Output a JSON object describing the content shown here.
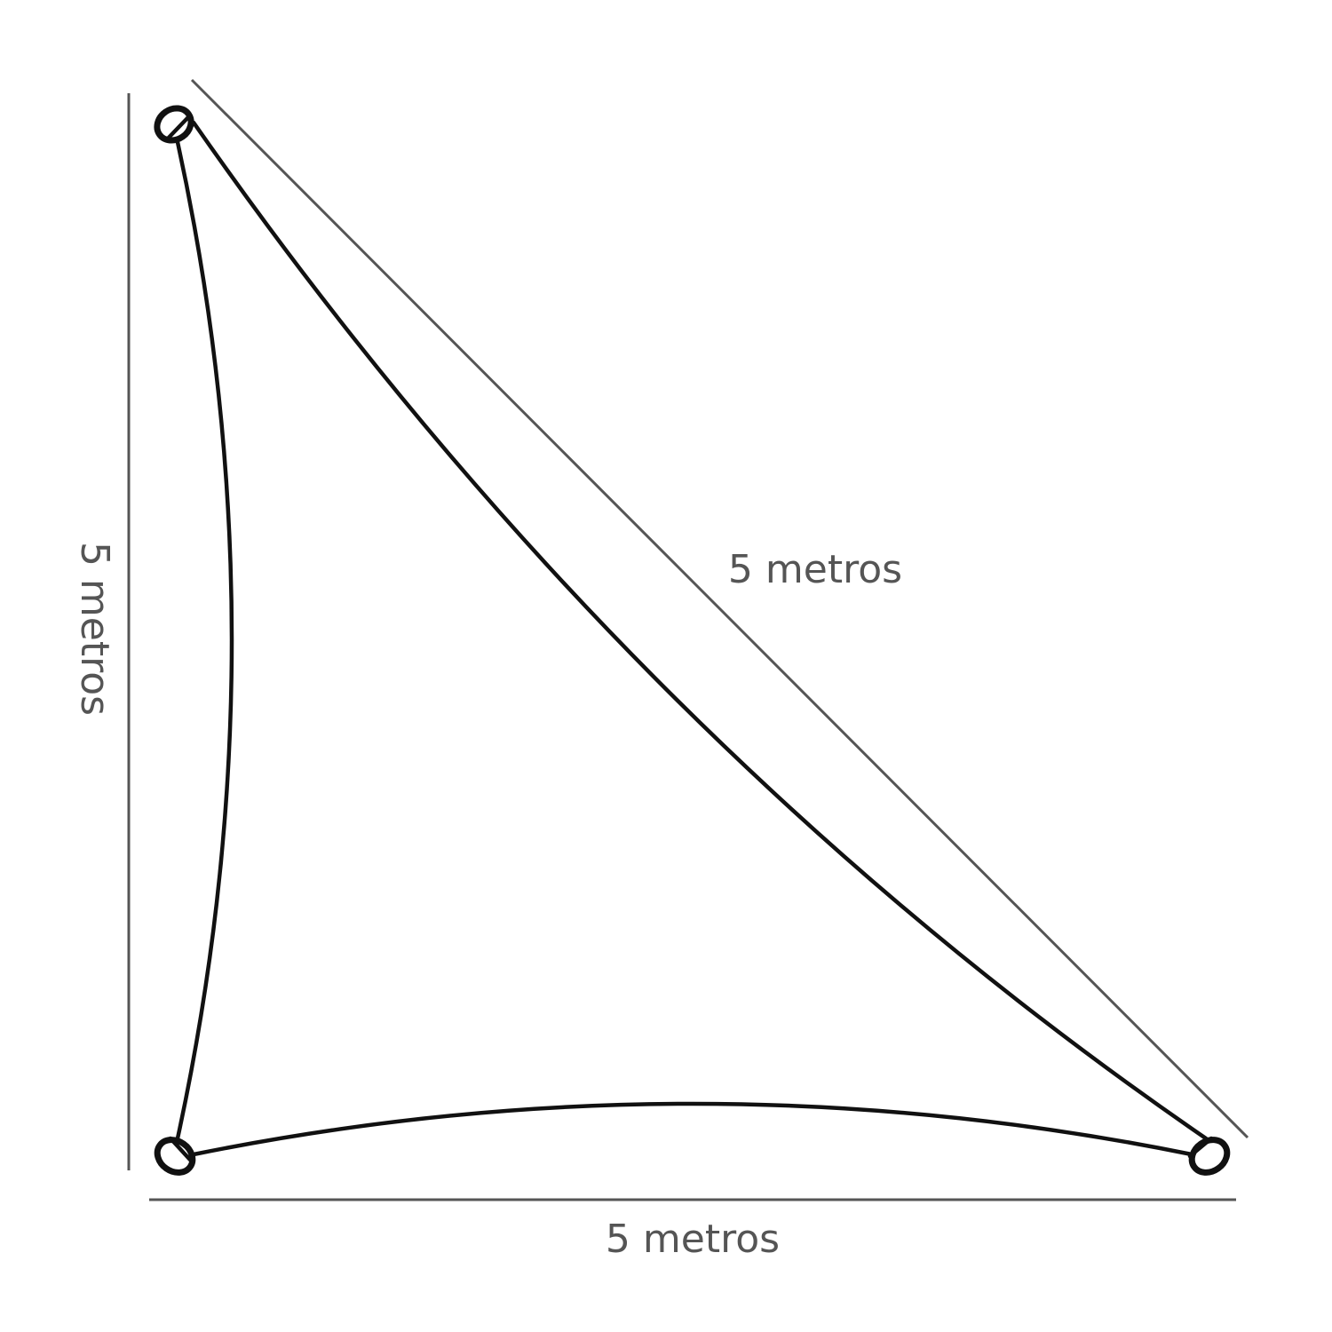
{
  "diagram": {
    "labels": {
      "left_side": "5 metros",
      "hypotenuse": "5 metros",
      "bottom_side": "5 metros"
    },
    "colors": {
      "dimension_lines": "#555555",
      "sail_outline": "#111111",
      "background": "#ffffff"
    }
  }
}
